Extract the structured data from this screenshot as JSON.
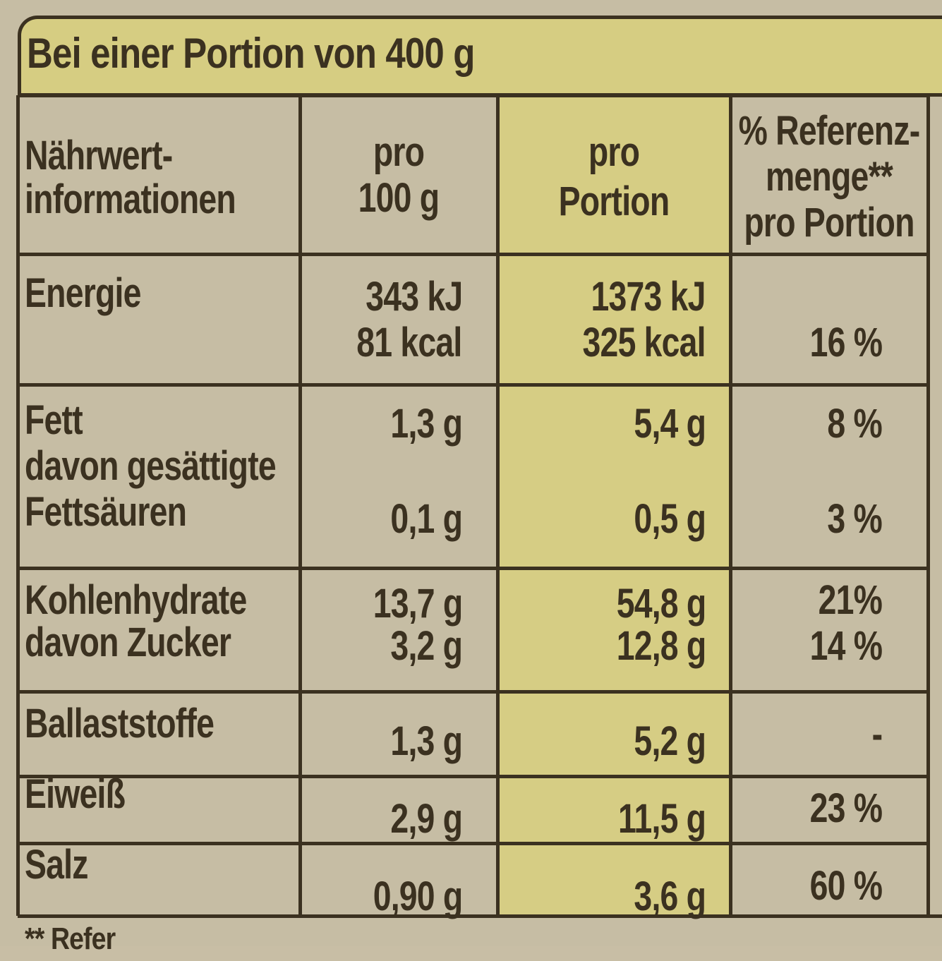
{
  "header": {
    "title": "Bei einer Portion von 400 g"
  },
  "table": {
    "columns": [
      [
        "Nährwert-",
        "informationen"
      ],
      [
        "pro",
        "100 g"
      ],
      [
        "pro",
        "Portion"
      ],
      [
        "% Referenz-",
        "menge**",
        "pro Portion"
      ]
    ],
    "rows": [
      [
        [
          "Energie"
        ],
        [
          "343 kJ",
          "81 kcal"
        ],
        [
          "1373 kJ",
          "325 kcal"
        ],
        [
          "16 %"
        ]
      ],
      [
        [
          "Fett",
          "davon gesättigte",
          "Fettsäuren"
        ],
        [
          "1,3 g",
          "0,1 g"
        ],
        [
          "5,4 g",
          "0,5 g"
        ],
        [
          "8 %",
          "3 %"
        ]
      ],
      [
        [
          "Kohlenhydrate",
          "davon Zucker"
        ],
        [
          "13,7 g",
          "3,2 g"
        ],
        [
          "54,8 g",
          "12,8 g"
        ],
        [
          "21%",
          "14 %"
        ]
      ],
      [
        [
          "Ballaststoffe"
        ],
        [
          "1,3 g"
        ],
        [
          "5,2 g"
        ],
        [
          "-"
        ]
      ],
      [
        [
          "Eiweiß"
        ],
        [
          "2,9 g"
        ],
        [
          "11,5 g"
        ],
        [
          "23 %"
        ]
      ],
      [
        [
          "Salz"
        ],
        [
          "0,90 g"
        ],
        [
          "3,6 g"
        ],
        [
          "60 %"
        ]
      ]
    ]
  },
  "footer": {
    "note": "** Refer"
  }
}
